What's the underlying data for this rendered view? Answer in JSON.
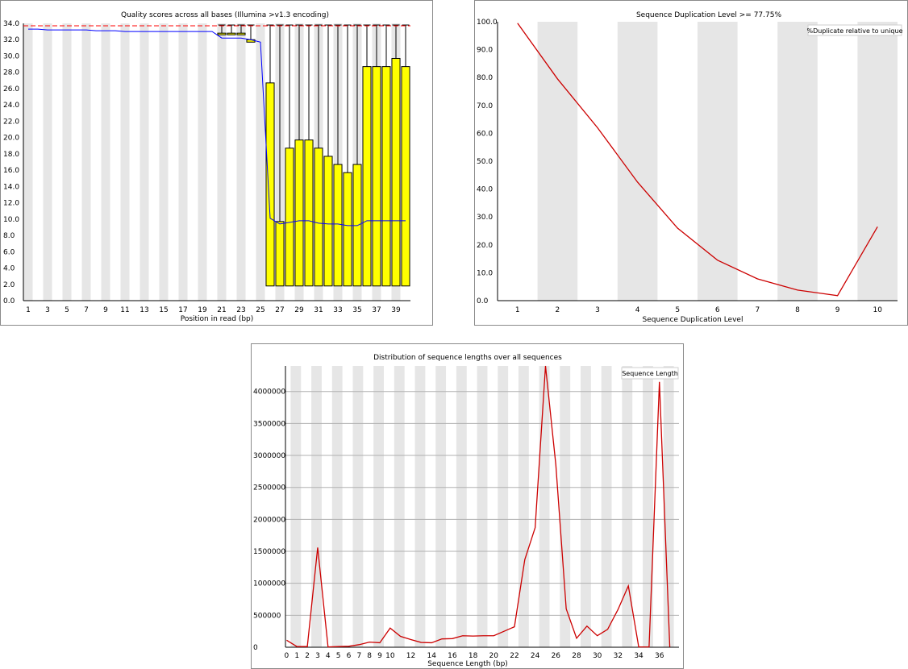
{
  "chart_data": [
    {
      "type": "box",
      "title": "Quality scores across all bases (Illumina >v1.3 encoding)",
      "xlabel": "Position in read (bp)",
      "ylabel": "",
      "ylim": [
        0,
        34
      ],
      "y_ticks": [
        "0.0",
        "2.0",
        "4.0",
        "6.0",
        "8.0",
        "10.0",
        "12.0",
        "14.0",
        "16.0",
        "18.0",
        "20.0",
        "22.0",
        "24.0",
        "26.0",
        "28.0",
        "30.0",
        "32.0",
        "34.0"
      ],
      "x_ticks": [
        "1",
        "3",
        "5",
        "7",
        "9",
        "11",
        "13",
        "15",
        "17",
        "19",
        "21",
        "23",
        "25",
        "27",
        "29",
        "31",
        "33",
        "35",
        "37",
        "39"
      ],
      "positions": [
        1,
        2,
        3,
        4,
        5,
        6,
        7,
        8,
        9,
        10,
        11,
        12,
        13,
        14,
        15,
        16,
        17,
        18,
        19,
        20,
        21,
        22,
        23,
        24,
        25,
        26,
        27,
        28,
        29,
        30,
        31,
        32,
        33,
        34,
        35,
        36,
        37,
        38,
        39,
        40
      ],
      "boxes": [
        {
          "pos": 21,
          "q1": 32.6,
          "q3": 32.8,
          "whisker_low": 32.6,
          "whisker_high": 33.8
        },
        {
          "pos": 22,
          "q1": 32.6,
          "q3": 32.8,
          "whisker_low": 32.6,
          "whisker_high": 33.8
        },
        {
          "pos": 23,
          "q1": 32.6,
          "q3": 32.8,
          "whisker_low": 32.6,
          "whisker_high": 33.8
        },
        {
          "pos": 24,
          "q1": 31.7,
          "q3": 32.0,
          "whisker_low": 31.5,
          "whisker_high": 33.8
        },
        {
          "pos": 26,
          "q1": 1.8,
          "q3": 26.7,
          "whisker_low": 1.8,
          "whisker_high": 33.8
        },
        {
          "pos": 27,
          "q1": 1.8,
          "q3": 9.7,
          "whisker_low": 1.8,
          "whisker_high": 33.8
        },
        {
          "pos": 28,
          "q1": 1.8,
          "q3": 18.7,
          "whisker_low": 1.8,
          "whisker_high": 33.8
        },
        {
          "pos": 29,
          "q1": 1.8,
          "q3": 19.7,
          "whisker_low": 1.8,
          "whisker_high": 33.8
        },
        {
          "pos": 30,
          "q1": 1.8,
          "q3": 19.7,
          "whisker_low": 1.8,
          "whisker_high": 33.8
        },
        {
          "pos": 31,
          "q1": 1.8,
          "q3": 18.7,
          "whisker_low": 1.8,
          "whisker_high": 33.8
        },
        {
          "pos": 32,
          "q1": 1.8,
          "q3": 17.7,
          "whisker_low": 1.8,
          "whisker_high": 33.8
        },
        {
          "pos": 33,
          "q1": 1.8,
          "q3": 16.7,
          "whisker_low": 1.8,
          "whisker_high": 33.8
        },
        {
          "pos": 34,
          "q1": 1.8,
          "q3": 15.7,
          "whisker_low": 1.8,
          "whisker_high": 33.8
        },
        {
          "pos": 35,
          "q1": 1.8,
          "q3": 16.7,
          "whisker_low": 1.8,
          "whisker_high": 33.8
        },
        {
          "pos": 36,
          "q1": 1.8,
          "q3": 28.7,
          "whisker_low": 1.8,
          "whisker_high": 33.8
        },
        {
          "pos": 37,
          "q1": 1.8,
          "q3": 28.7,
          "whisker_low": 1.8,
          "whisker_high": 33.8
        },
        {
          "pos": 38,
          "q1": 1.8,
          "q3": 28.7,
          "whisker_low": 1.8,
          "whisker_high": 33.8
        },
        {
          "pos": 39,
          "q1": 1.8,
          "q3": 29.7,
          "whisker_low": 1.8,
          "whisker_high": 33.8
        },
        {
          "pos": 40,
          "q1": 1.8,
          "q3": 28.7,
          "whisker_low": 1.8,
          "whisker_high": 33.8
        }
      ],
      "mean_line": [
        33.3,
        33.3,
        33.2,
        33.2,
        33.2,
        33.2,
        33.2,
        33.1,
        33.1,
        33.1,
        33.0,
        33.0,
        33.0,
        33.0,
        33.0,
        33.0,
        33.0,
        33.0,
        33.0,
        33.0,
        32.2,
        32.2,
        32.2,
        32.0,
        31.7,
        10.1,
        9.4,
        9.6,
        9.8,
        9.8,
        9.5,
        9.4,
        9.4,
        9.2,
        9.2,
        9.8,
        9.8,
        9.8,
        9.8,
        9.8
      ],
      "reference_line": 33.7,
      "colors": {
        "box": "#ffff00",
        "mean": "#0000ff",
        "reference": "#ff0000",
        "stripe": "#e6e6e6"
      }
    },
    {
      "type": "line",
      "title": "Sequence Duplication Level >= 77.75%",
      "xlabel": "Sequence Duplication Level",
      "ylabel": "",
      "ylim": [
        0,
        100
      ],
      "y_ticks": [
        "0.0",
        "10.0",
        "20.0",
        "30.0",
        "40.0",
        "50.0",
        "60.0",
        "70.0",
        "80.0",
        "90.0",
        "100.0"
      ],
      "categories": [
        "1",
        "2",
        "3",
        "4",
        "5",
        "6",
        "7",
        "8",
        "9",
        "10"
      ],
      "series": [
        {
          "name": "%Duplicate relative to unique",
          "color": "#cc0000",
          "values": [
            99.5,
            79.5,
            62.0,
            42.5,
            26.0,
            14.5,
            7.8,
            3.8,
            1.8,
            26.5
          ]
        }
      ],
      "legend": "top-right"
    },
    {
      "type": "line",
      "title": "Distribution of sequence lengths over all sequences",
      "xlabel": "Sequence Length (bp)",
      "ylabel": "",
      "ylim": [
        0,
        4400000
      ],
      "y_ticks": [
        "0",
        "500000",
        "1000000",
        "1500000",
        "2000000",
        "2500000",
        "3000000",
        "3500000",
        "4000000"
      ],
      "x_ticks": [
        "0",
        "1",
        "2",
        "3",
        "4",
        "5",
        "6",
        "7",
        "8",
        "9",
        "10",
        "12",
        "14",
        "16",
        "18",
        "20",
        "22",
        "24",
        "26",
        "28",
        "30",
        "32",
        "34",
        "36"
      ],
      "x": [
        0,
        1,
        2,
        3,
        4,
        5,
        6,
        7,
        8,
        9,
        10,
        11,
        12,
        13,
        14,
        15,
        16,
        17,
        18,
        19,
        20,
        21,
        22,
        23,
        24,
        25,
        26,
        27,
        28,
        29,
        30,
        31,
        32,
        33,
        34,
        35,
        36,
        37
      ],
      "series": [
        {
          "name": "Sequence Length",
          "color": "#cc0000",
          "values": [
            110000,
            10000,
            10000,
            1560000,
            5000,
            10000,
            15000,
            40000,
            80000,
            70000,
            300000,
            170000,
            120000,
            75000,
            70000,
            130000,
            135000,
            180000,
            175000,
            180000,
            180000,
            250000,
            320000,
            1370000,
            1870000,
            4400000,
            2850000,
            600000,
            140000,
            330000,
            180000,
            280000,
            590000,
            960000,
            5000,
            5000,
            4150000,
            5000
          ]
        }
      ],
      "legend": "top-right"
    }
  ]
}
